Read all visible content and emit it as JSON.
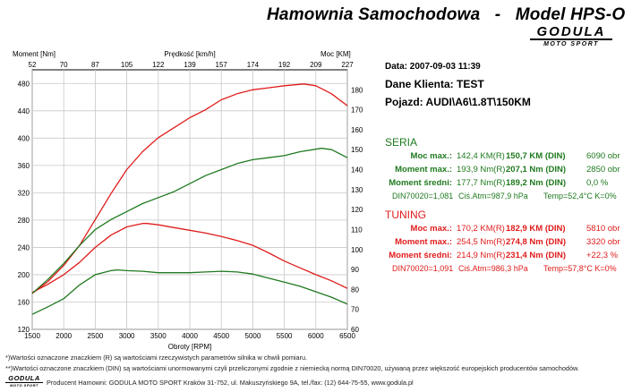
{
  "header": {
    "title": "Hamownia Samochodowa   -   Model HPS-O",
    "brand": "GODULA",
    "brand_sub": "MOTO SPORT"
  },
  "info": {
    "date": "Data: 2007-09-03  11:39",
    "client": "Dane Klienta: TEST",
    "vehicle": "Pojazd: AUDI\\A6\\1.8T\\150KM"
  },
  "seria": {
    "heading": "SERIA",
    "rows": [
      {
        "label": "Moc max.:",
        "v1": "142,4 KM(R)",
        "v2": "150,7 KM (DIN)",
        "v3": "6090 obr"
      },
      {
        "label": "Moment max.:",
        "v1": "193,9 Nm(R)",
        "v2": "207,1 Nm (DIN)",
        "v3": "2850 obr"
      },
      {
        "label": "Moment średni:",
        "v1": "177,7 Nm(R)",
        "v2": "189,2 Nm (DIN)",
        "v3": "0,0 %"
      }
    ],
    "din": "DIN70020=1,081",
    "atm": "Ciś.Atm=987,9 hPa",
    "temp": "Temp=52,4°C  K=0%"
  },
  "tuning": {
    "heading": "TUNING",
    "rows": [
      {
        "label": "Moc max.:",
        "v1": "170,2 KM(R)",
        "v2": "182,9 KM (DIN)",
        "v3": "5810 obr"
      },
      {
        "label": "Moment max.:",
        "v1": "254,5 Nm(R)",
        "v2": "274,8 Nm (DIN)",
        "v3": "3320 obr"
      },
      {
        "label": "Moment średni:",
        "v1": "214,9 Nm(R)",
        "v2": "231,4 Nm (DIN)",
        "v3": "+22,3 %"
      }
    ],
    "din": "DIN70020=1,091",
    "atm": "Ciś.Atm=986,3 hPa",
    "temp": "Temp=57,8°C  K=0%"
  },
  "footer": {
    "note1": "*)Wartości oznaczone znaczkiem (R) są wartościami rzeczywistych parametrów silnika w chwili pomiaru.",
    "note2": "**)Wartości oznaczone znaczkiem (DIN) są wartościami unormowanymi czyli przeliczonymi zgodnie z niemiecką normą DIN70020, używaną przez większość europejskich producentów samochodów.",
    "producer": "Producent Hamowni: GODULA MOTO SPORT Kraków 31-752, ul. Makuszyńskiego 9A, tel./fax: (12) 644-75-55, www.godula.pl",
    "logo": "GODULA",
    "logo_sub": "MOTO SPORT"
  },
  "colors": {
    "tuning": "#e01b1b",
    "seria": "#1f7a1f",
    "plot_bg": "#ffffff"
  },
  "chart_data": {
    "type": "line",
    "xlabel": "Obroty [RPM]",
    "top_xlabel": "Prędkość [km/h]",
    "ylabel_left": "Moment [Nm]",
    "ylabel_right": "Moc [KM]",
    "xlim": [
      1500,
      6500
    ],
    "ylim_left": [
      120,
      500
    ],
    "ylim_right": [
      60,
      190
    ],
    "x_ticks": [
      1500,
      2000,
      2500,
      3000,
      3500,
      4000,
      4500,
      5000,
      5500,
      6000,
      6500
    ],
    "y_left_ticks": [
      120,
      160,
      200,
      240,
      280,
      320,
      360,
      400,
      440,
      480
    ],
    "y_right_ticks": [
      60,
      70,
      80,
      90,
      100,
      110,
      120,
      130,
      140,
      150,
      160,
      170,
      180
    ],
    "top_ticks": [
      "52",
      "70",
      "87",
      "105",
      "122",
      "139",
      "157",
      "174",
      "192",
      "209",
      "227"
    ],
    "grid": true,
    "series": [
      {
        "axis": "left",
        "color": "#e01b1b",
        "x": [
          1500,
          1750,
          2000,
          2250,
          2500,
          2750,
          3000,
          3250,
          3320,
          3500,
          3750,
          4000,
          4250,
          4500,
          4750,
          5000,
          5250,
          5500,
          5750,
          6000,
          6250,
          6500
        ],
        "values": [
          174,
          186,
          200,
          218,
          240,
          258,
          270,
          275,
          275,
          273,
          269,
          265,
          261,
          256,
          250,
          243,
          232,
          220,
          210,
          200,
          191,
          180
        ]
      },
      {
        "axis": "left",
        "color": "#1f7a1f",
        "x": [
          1500,
          1750,
          2000,
          2250,
          2500,
          2750,
          2850,
          3000,
          3250,
          3500,
          3750,
          4000,
          4250,
          4500,
          4750,
          5000,
          5250,
          5500,
          5750,
          6000,
          6250,
          6500
        ],
        "values": [
          142,
          153,
          165,
          185,
          200,
          206,
          207,
          206,
          205,
          203,
          203,
          203,
          204,
          205,
          204,
          201,
          195,
          189,
          183,
          175,
          167,
          157
        ]
      },
      {
        "axis": "right",
        "color": "#e01b1b",
        "x": [
          1500,
          1750,
          2000,
          2250,
          2500,
          2750,
          3000,
          3250,
          3500,
          3750,
          4000,
          4250,
          4500,
          4750,
          5000,
          5250,
          5500,
          5810,
          6000,
          6250,
          6500
        ],
        "values": [
          78,
          84,
          92,
          102,
          115,
          128,
          140,
          149,
          156,
          161,
          166,
          170,
          175,
          178,
          180,
          181,
          182,
          182.9,
          182,
          178,
          172
        ]
      },
      {
        "axis": "right",
        "color": "#1f7a1f",
        "x": [
          1500,
          1750,
          2000,
          2250,
          2500,
          2750,
          3000,
          3250,
          3500,
          3750,
          4000,
          4250,
          4500,
          4750,
          5000,
          5250,
          5500,
          5750,
          6090,
          6250,
          6500
        ],
        "values": [
          78,
          85,
          93,
          102,
          110,
          115,
          119,
          123,
          126,
          129,
          133,
          137,
          140,
          143,
          145,
          146,
          147,
          149,
          150.7,
          150,
          146
        ]
      }
    ]
  }
}
